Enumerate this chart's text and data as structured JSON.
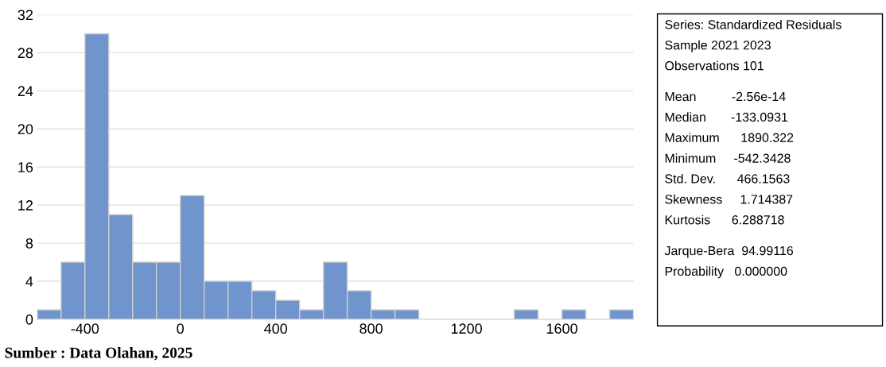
{
  "chart_data": {
    "type": "histogram",
    "bins": [
      -600,
      -500,
      -400,
      -300,
      -200,
      -100,
      0,
      100,
      200,
      300,
      400,
      500,
      600,
      700,
      800,
      900,
      1000,
      1100,
      1200,
      1300,
      1400,
      1500,
      1600,
      1700,
      1800,
      1900
    ],
    "values": [
      1,
      6,
      30,
      11,
      6,
      6,
      13,
      4,
      4,
      3,
      2,
      1,
      6,
      3,
      1,
      1,
      0,
      0,
      0,
      0,
      1,
      0,
      1,
      0,
      1
    ],
    "color": "#7094cc",
    "xlim": [
      -600,
      1900
    ],
    "xticks": [
      -400,
      0,
      400,
      800,
      1200,
      1600
    ],
    "ylim": [
      0,
      32
    ],
    "yticks": [
      0,
      4,
      8,
      12,
      16,
      20,
      24,
      28,
      32
    ],
    "grid": "y",
    "legend": false,
    "annotations": [
      "Sumber : Data Olahan, 2025",
      "Series: Standardized Residuals",
      "Sample 2021 2023",
      "Observations 101",
      "Mean          -2.56e-14",
      "Median       -133.0931",
      "Maximum      1890.322",
      "Minimum     -542.3428",
      "Std. Dev.      466.1563",
      "Skewness     1.714387",
      "Kurtosis      6.288718",
      "Jarque-Bera  94.99116",
      "Probability   0.000000"
    ]
  }
}
